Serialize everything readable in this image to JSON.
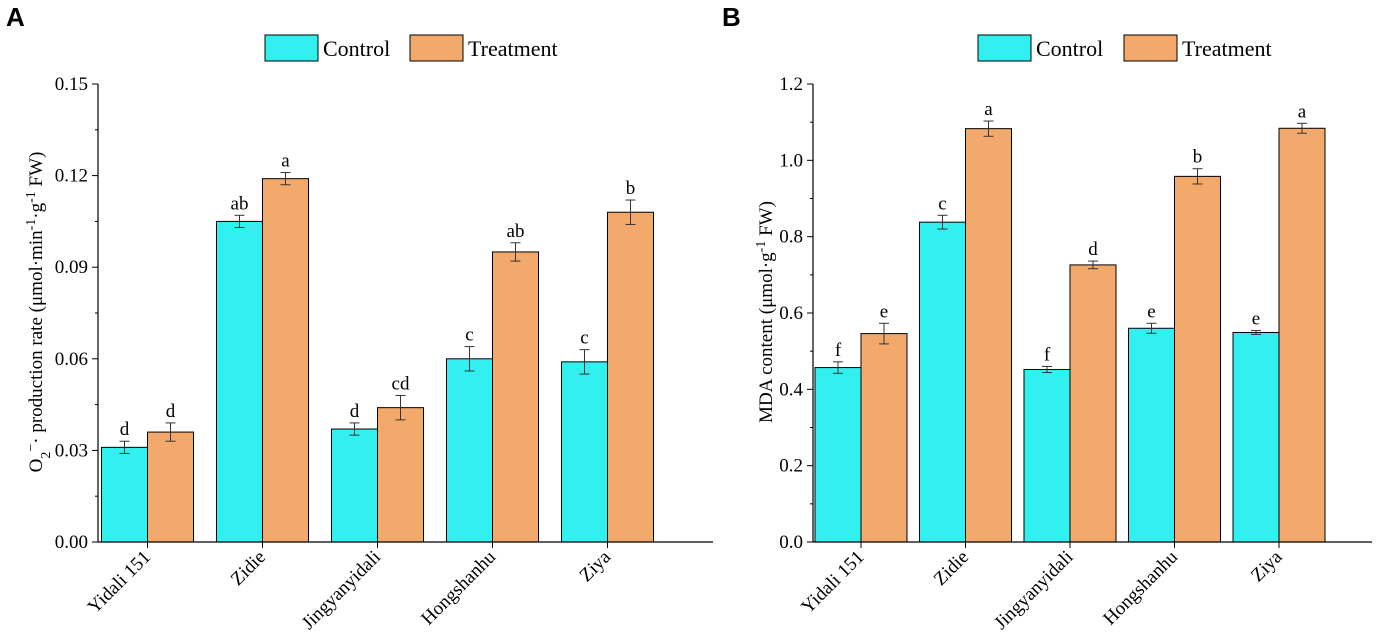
{
  "colors": {
    "control": "#33f0f0",
    "treatment": "#f2a96b"
  },
  "chart_data": [
    {
      "panel": "A",
      "type": "bar",
      "legend": [
        "Control",
        "Treatment"
      ],
      "ylabel": {
        "pre": "O",
        "sub": "2",
        "sup": "−",
        "post": "· production rate (μmol·min",
        "sup2": "-1",
        "mid": "·g",
        "sup3": "-1",
        "end": " FW)"
      },
      "categories": [
        "Yidali 151",
        "Zidie",
        "Jingyanyidali",
        "Hongshanhu",
        "Ziya"
      ],
      "ylim": [
        0,
        0.15
      ],
      "yticks": [
        0,
        0.03,
        0.06,
        0.09,
        0.12,
        0.15
      ],
      "ytick_labels": [
        "0.00",
        "0.03",
        "0.06",
        "0.09",
        "0.12",
        "0.15"
      ],
      "series": [
        {
          "name": "Control",
          "values": [
            0.031,
            0.105,
            0.037,
            0.06,
            0.059
          ],
          "errors": [
            0.002,
            0.002,
            0.002,
            0.004,
            0.004
          ],
          "labels": [
            "d",
            "ab",
            "d",
            "c",
            "c"
          ]
        },
        {
          "name": "Treatment",
          "values": [
            0.036,
            0.119,
            0.044,
            0.095,
            0.108
          ],
          "errors": [
            0.003,
            0.002,
            0.004,
            0.003,
            0.004
          ],
          "labels": [
            "d",
            "a",
            "cd",
            "ab",
            "b"
          ]
        }
      ]
    },
    {
      "panel": "B",
      "type": "bar",
      "legend": [
        "Control",
        "Treatment"
      ],
      "ylabel": {
        "pre": "MDA content (μmol·g",
        "sup": "-1",
        "post": " FW)"
      },
      "categories": [
        "Yidali 151",
        "Zidie",
        "Jingyanyidali",
        "Hongshanhu",
        "Ziya"
      ],
      "ylim": [
        0,
        1.2
      ],
      "yticks": [
        0,
        0.2,
        0.4,
        0.6,
        0.8,
        1.0,
        1.2
      ],
      "ytick_labels": [
        "0.0",
        "0.2",
        "0.4",
        "0.6",
        "0.8",
        "1.0",
        "1.2"
      ],
      "series": [
        {
          "name": "Control",
          "values": [
            0.457,
            0.838,
            0.452,
            0.56,
            0.549
          ],
          "errors": [
            0.015,
            0.018,
            0.008,
            0.013,
            0.005
          ],
          "labels": [
            "f",
            "c",
            "f",
            "e",
            "e"
          ]
        },
        {
          "name": "Treatment",
          "values": [
            0.546,
            1.083,
            0.726,
            0.958,
            1.084
          ],
          "errors": [
            0.027,
            0.02,
            0.01,
            0.02,
            0.013
          ],
          "labels": [
            "e",
            "a",
            "d",
            "b",
            "a"
          ]
        }
      ]
    }
  ]
}
